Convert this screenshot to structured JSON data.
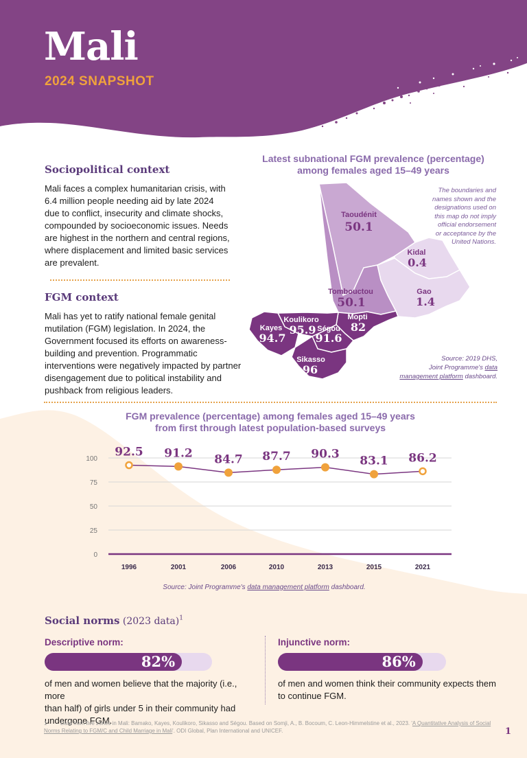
{
  "header": {
    "title": "Mali",
    "subtitle": "2024 SNAPSHOT"
  },
  "colors": {
    "purple": "#7a3580",
    "light_purple": "#c9a8d2",
    "pale_purple": "#e8d9ee",
    "orange": "#f0a23c",
    "cream": "#fdf1e4"
  },
  "sociopolitical": {
    "heading": "Sociopolitical context",
    "lines": [
      "Mali faces a complex humanitarian crisis, with",
      "6.4 million people needing aid by late 2024",
      "due to conflict, insecurity and climate shocks,",
      "compounded by socioeconomic issues. Needs",
      "are highest in the northern and central regions,",
      "where displacement and limited basic services",
      "are prevalent."
    ]
  },
  "fgm_context": {
    "heading": "FGM context",
    "lines": [
      "Mali has yet to ratify national female genital",
      "mutilation (FGM) legislation. In 2024, the",
      "Government focused its efforts on awareness-",
      "building and prevention. Programmatic",
      "interventions were negatively impacted by partner",
      "disengagement due to political instability and",
      "pushback from religious leaders."
    ]
  },
  "map": {
    "title_line1": "Latest subnational FGM prevalence (percentage)",
    "title_line2": "among females aged 15–49 years",
    "disclaimer_lines": [
      "The boundaries and",
      "names shown and the",
      "designations used on",
      "this map do not imply",
      "official endorsement",
      "or acceptance by the",
      "United Nations."
    ],
    "regions": [
      {
        "name": "Taoudénit",
        "value": "50.1"
      },
      {
        "name": "Kidal",
        "value": "0.4"
      },
      {
        "name": "Gao",
        "value": "1.4"
      },
      {
        "name": "Tombouctou",
        "value": "50.1"
      },
      {
        "name": "Mopti",
        "value": "82"
      },
      {
        "name": "Koulikoro",
        "value": "95.9"
      },
      {
        "name": "Ségou",
        "value": "91.6"
      },
      {
        "name": "Kayes",
        "value": "94.7"
      },
      {
        "name": "Sikasso",
        "value": "96"
      }
    ],
    "source_line1": "Source: 2019 DHS,",
    "source_line2_a": "Joint Programme's ",
    "source_line2_link": "data",
    "source_line3_link": "management platform",
    "source_line3_b": " dashboard."
  },
  "chart_data": {
    "type": "line",
    "title_line1": "FGM prevalence (percentage) among females aged 15–49 years",
    "title_line2": "from first through latest population-based surveys",
    "x": [
      "1996",
      "2001",
      "2006",
      "2010",
      "2013",
      "2015",
      "2021"
    ],
    "values": [
      92.5,
      91.2,
      84.7,
      87.7,
      90.3,
      83.1,
      86.2
    ],
    "value_labels": [
      "92.5",
      "91.2",
      "84.7",
      "87.7",
      "90.3",
      "83.1",
      "86.2"
    ],
    "yticks": [
      "100",
      "75",
      "50",
      "25",
      "0"
    ],
    "ylim": [
      0,
      100
    ],
    "grid": true,
    "marker_styles": [
      "hollow",
      "filled",
      "filled",
      "filled",
      "filled",
      "filled",
      "hollow"
    ],
    "source_a": "Source: Joint Programme's ",
    "source_link": "data management platform",
    "source_b": " dashboard."
  },
  "social_norms": {
    "heading": "Social norms",
    "heading_suffix": "(2023 data)",
    "footnote_mark": "1",
    "descriptive": {
      "label": "Descriptive norm:",
      "value": 82,
      "value_label": "82%",
      "lines": [
        "of men and women believe that the majority (i.e., more",
        "than half) of girls under 5 in their community had",
        "undergone FGM."
      ]
    },
    "injunctive": {
      "label": "Injunctive norm:",
      "value": 86,
      "value_label": "86%",
      "lines": [
        "of men and women think their community expects them",
        "to continue FGM."
      ]
    }
  },
  "footnote": {
    "num": "1",
    "text_a": "Data from five zones in Mali: Bamako, Kayes, Koulikoro, Sikasso and Ségou. Based on Somji, A., B. Bocoum, C. Leon-Himmelstine et al., 2023. '",
    "link": "A Quantitative Analysis of Social Norms Relating to FGM/C and Child Marriage in Mali",
    "text_b": "'. ODI Global, Plan International and UNICEF."
  },
  "page_number": "1"
}
